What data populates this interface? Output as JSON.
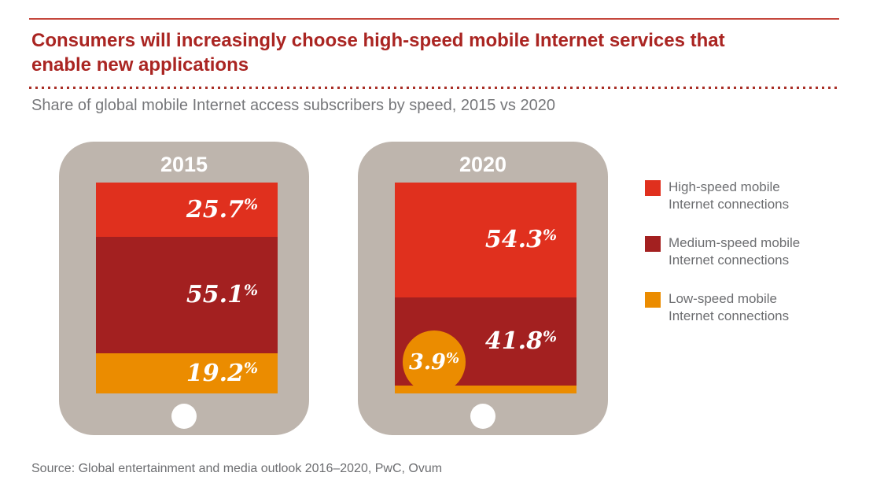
{
  "header": {
    "title_line1": "Consumers will increasingly choose high-speed mobile Internet services that",
    "title_line2": "enable new applications",
    "subtitle": "Share of global mobile Internet access subscribers by speed, 2015 vs 2020",
    "accent_rule_color": "#c5473d",
    "title_color": "#aa2522"
  },
  "colors": {
    "high": "#e0301e",
    "medium": "#a32020",
    "low": "#eb8c00",
    "tablet_body": "#beb5ad",
    "text_gray": "#6d6e71"
  },
  "tablets": [
    {
      "year": "2015",
      "segments": [
        {
          "name": "High-speed",
          "value": "25.7",
          "unit": "%",
          "percent": 25.7
        },
        {
          "name": "Medium-speed",
          "value": "55.1",
          "unit": "%",
          "percent": 55.1
        },
        {
          "name": "Low-speed",
          "value": "19.2",
          "unit": "%",
          "percent": 19.2
        }
      ]
    },
    {
      "year": "2020",
      "segments": [
        {
          "name": "High-speed",
          "value": "54.3",
          "unit": "%",
          "percent": 54.3
        },
        {
          "name": "Medium-speed",
          "value": "41.8",
          "unit": "%",
          "percent": 41.8
        },
        {
          "name": "Low-speed",
          "value": "3.9",
          "unit": "%",
          "percent": 3.9
        }
      ]
    }
  ],
  "legend": {
    "items": [
      {
        "label": "High-speed mobile Internet connections",
        "color": "#e0301e"
      },
      {
        "label": "Medium-speed mobile Internet connections",
        "color": "#a32020"
      },
      {
        "label": "Low-speed mobile Internet connections",
        "color": "#eb8c00"
      }
    ]
  },
  "source": "Source: Global entertainment and media outlook 2016–2020, PwC, Ovum",
  "chart_data": {
    "type": "bar",
    "subtype": "stacked-percent",
    "title": "Share of global mobile Internet access subscribers by speed, 2015 vs 2020",
    "categories": [
      "2015",
      "2020"
    ],
    "series": [
      {
        "name": "High-speed mobile Internet connections",
        "color": "#e0301e",
        "values": [
          25.7,
          54.3
        ]
      },
      {
        "name": "Medium-speed mobile Internet connections",
        "color": "#a32020",
        "values": [
          55.1,
          41.8
        ]
      },
      {
        "name": "Low-speed mobile Internet connections",
        "color": "#eb8c00",
        "values": [
          19.2,
          3.9
        ]
      }
    ],
    "unit": "%",
    "ylim": [
      0,
      100
    ],
    "grid": false,
    "legend_position": "right",
    "annotations": [
      "3.9% value shown in orange circle callout on the 2020 bar"
    ]
  }
}
